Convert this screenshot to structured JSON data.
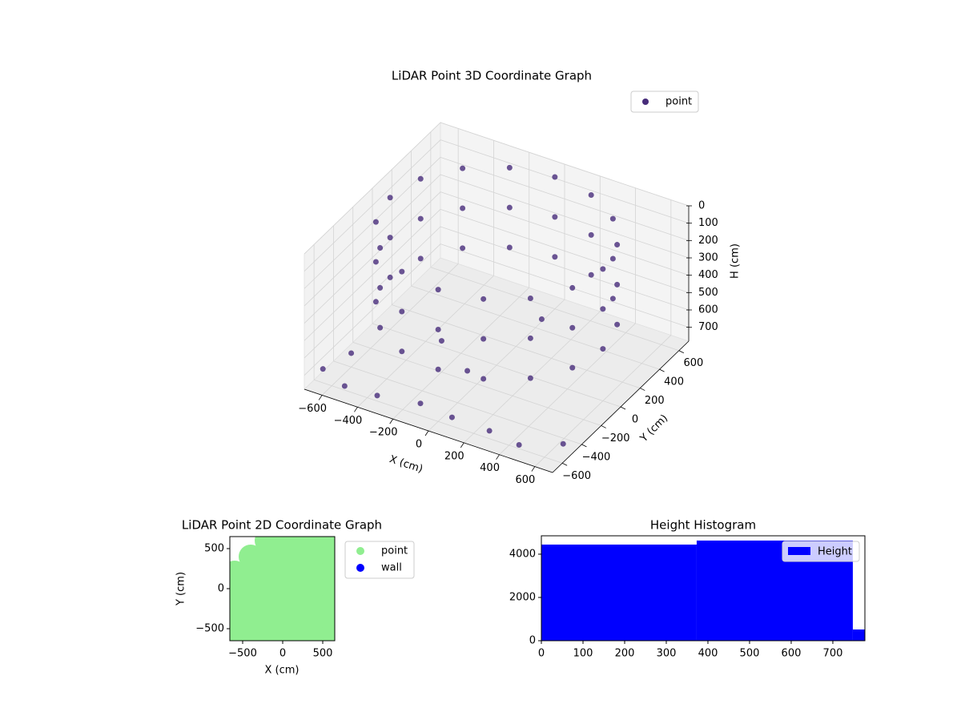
{
  "chart_data": [
    {
      "type": "scatter3d",
      "title": "LiDAR Point 3D Coordinate Graph",
      "xlabel": "X (cm)",
      "ylabel": "Y (cm)",
      "zlabel": "H (cm)",
      "xlim": [
        -700,
        700
      ],
      "ylim": [
        -700,
        700
      ],
      "zlim": [
        0,
        780
      ],
      "z_inverted": true,
      "grid": true,
      "legend": "upper right",
      "xticks": [
        {
          "value": -600,
          "label": "−600"
        },
        {
          "value": -400,
          "label": "−400"
        },
        {
          "value": -200,
          "label": "−200"
        },
        0,
        200,
        400,
        600
      ],
      "yticks": [
        {
          "value": -600,
          "label": "−600"
        },
        {
          "value": -400,
          "label": "−400"
        },
        {
          "value": -200,
          "label": "−200"
        },
        0,
        200,
        400,
        600
      ],
      "zticks": [
        0,
        100,
        200,
        300,
        400,
        500,
        600,
        700
      ],
      "series": [
        {
          "name": "point",
          "color": "#472c7a",
          "x": [
            600,
            554,
            424,
            230,
            0,
            -230,
            -424,
            -554,
            -600,
            -554,
            -424,
            -230,
            0,
            230,
            424,
            554,
            600,
            554,
            424,
            230,
            0,
            -230,
            -424,
            -554,
            -600,
            -554,
            -424,
            -230,
            0,
            230,
            424,
            554,
            600,
            554,
            424,
            230,
            0,
            -230,
            -424,
            -554,
            -600,
            -554,
            -424,
            -230,
            0,
            230,
            424,
            554,
            -650,
            -500,
            -300,
            -100,
            100,
            300,
            500,
            650,
            -200,
            200,
            0,
            -600
          ],
          "y": [
            0,
            230,
            424,
            554,
            600,
            554,
            424,
            230,
            0,
            -230,
            -424,
            -554,
            -600,
            -554,
            -424,
            -230,
            0,
            230,
            424,
            554,
            600,
            554,
            424,
            230,
            0,
            -230,
            -424,
            -554,
            -600,
            -554,
            -424,
            -230,
            0,
            230,
            424,
            554,
            600,
            554,
            424,
            230,
            0,
            -230,
            -424,
            -554,
            -600,
            -554,
            -424,
            -230,
            -600,
            -650,
            -680,
            -600,
            -640,
            -620,
            -680,
            -500,
            -200,
            100,
            -300,
            -400
          ],
          "z": [
            20,
            20,
            20,
            20,
            20,
            20,
            20,
            20,
            20,
            20,
            20,
            20,
            20,
            20,
            20,
            20,
            250,
            250,
            250,
            250,
            250,
            250,
            250,
            250,
            250,
            250,
            250,
            250,
            250,
            250,
            250,
            250,
            480,
            480,
            480,
            480,
            480,
            480,
            480,
            480,
            480,
            480,
            480,
            480,
            480,
            480,
            480,
            480,
            700,
            720,
            690,
            710,
            700,
            720,
            700,
            740,
            600,
            500,
            650,
            700
          ]
        }
      ]
    },
    {
      "type": "scatter",
      "title": "LiDAR Point 2D Coordinate Graph",
      "xlabel": "X (cm)",
      "ylabel": "Y (cm)",
      "xlim": [
        -660,
        650
      ],
      "ylim": [
        -650,
        650
      ],
      "legend": "outside right",
      "xticks": [
        {
          "value": -500,
          "label": "−500"
        },
        0,
        500
      ],
      "yticks": [
        {
          "value": -500,
          "label": "−500"
        },
        0,
        500
      ],
      "series": [
        {
          "name": "point",
          "color": "#90ee90",
          "x": [
            -200,
            0,
            200,
            400,
            600,
            -400,
            -200,
            0,
            200,
            400,
            600,
            -600,
            -400,
            -200,
            0,
            200,
            400,
            600,
            -600,
            -400,
            -200,
            0,
            200,
            400,
            600,
            -600,
            -400,
            -200,
            0,
            200,
            400,
            600,
            -600,
            -400,
            -200,
            0,
            200,
            400,
            600,
            -600,
            -400,
            -200,
            0,
            200,
            400,
            600
          ],
          "y": [
            600,
            600,
            600,
            600,
            600,
            400,
            400,
            400,
            400,
            400,
            400,
            200,
            200,
            200,
            200,
            200,
            200,
            200,
            0,
            0,
            0,
            0,
            0,
            0,
            0,
            -200,
            -200,
            -200,
            -200,
            -200,
            -200,
            -200,
            -400,
            -400,
            -400,
            -400,
            -400,
            -400,
            -400,
            -600,
            -600,
            -600,
            -600,
            -600,
            -600,
            -600
          ]
        },
        {
          "name": "wall",
          "color": "#0000ff",
          "x": [],
          "y": []
        }
      ]
    },
    {
      "type": "histogram",
      "title": "Height Histogram",
      "legend": "upper right",
      "xlim": [
        0,
        777
      ],
      "ylim": [
        0,
        4850
      ],
      "xticks": [
        0,
        100,
        200,
        300,
        400,
        500,
        600,
        700
      ],
      "yticks": [
        0,
        2000,
        4000
      ],
      "series": [
        {
          "name": "Height",
          "color": "#0000ff",
          "bins": [
            0,
            373,
            748,
            777
          ],
          "values": [
            4444,
            4630,
            519
          ]
        }
      ]
    }
  ]
}
